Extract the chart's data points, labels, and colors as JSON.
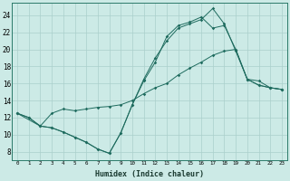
{
  "xlabel": "Humidex (Indice chaleur)",
  "bg_color": "#cceae6",
  "grid_color": "#aacfcb",
  "line_color": "#1e6b5e",
  "xlim": [
    -0.5,
    23.5
  ],
  "ylim": [
    7,
    25.5
  ],
  "xticks": [
    0,
    1,
    2,
    3,
    4,
    5,
    6,
    7,
    8,
    9,
    10,
    11,
    12,
    13,
    14,
    15,
    16,
    17,
    18,
    19,
    20,
    21,
    22,
    23
  ],
  "yticks": [
    8,
    10,
    12,
    14,
    16,
    18,
    20,
    22,
    24
  ],
  "line1_x": [
    0,
    1,
    2,
    3,
    4,
    5,
    6,
    7,
    8,
    9,
    10,
    11,
    12,
    13,
    14,
    15,
    16,
    17,
    18,
    19,
    20,
    21,
    22,
    23
  ],
  "line1_y": [
    12.5,
    12.0,
    11.0,
    10.8,
    10.3,
    9.7,
    9.1,
    8.3,
    7.8,
    10.2,
    13.5,
    16.5,
    19.0,
    21.0,
    22.5,
    23.0,
    23.5,
    24.8,
    23.0,
    19.8,
    16.5,
    15.8,
    15.5,
    15.3
  ],
  "line2_x": [
    0,
    2,
    3,
    4,
    5,
    6,
    7,
    8,
    9,
    10,
    11,
    12,
    13,
    14,
    15,
    16,
    17,
    18,
    19,
    20,
    21,
    22,
    23
  ],
  "line2_y": [
    12.5,
    11.0,
    12.5,
    13.0,
    12.8,
    13.0,
    13.2,
    13.3,
    13.5,
    14.0,
    14.8,
    15.5,
    16.0,
    17.0,
    17.8,
    18.5,
    19.3,
    19.8,
    20.0,
    16.5,
    16.3,
    15.5,
    15.3
  ],
  "line3_x": [
    0,
    1,
    2,
    3,
    4,
    5,
    6,
    7,
    8,
    9,
    10,
    11,
    12,
    13,
    14,
    15,
    16,
    17,
    18,
    19,
    20,
    21,
    22,
    23
  ],
  "line3_y": [
    12.5,
    12.0,
    11.0,
    10.8,
    10.3,
    9.7,
    9.1,
    8.3,
    7.8,
    10.2,
    13.5,
    16.3,
    18.5,
    21.5,
    22.8,
    23.2,
    23.8,
    22.5,
    22.8,
    20.0,
    16.5,
    15.8,
    15.5,
    15.3
  ]
}
